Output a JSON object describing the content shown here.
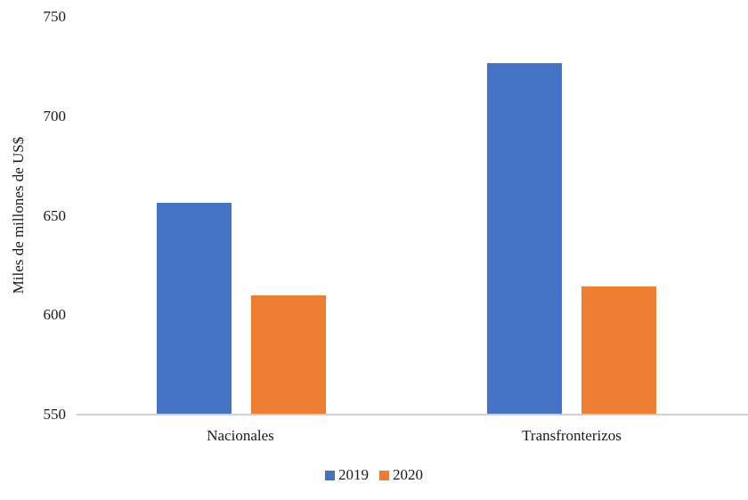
{
  "chart_data": {
    "type": "bar",
    "title": "",
    "xlabel": "",
    "ylabel": "Miles de millones de US$",
    "ylim": [
      550,
      750
    ],
    "yticks": [
      550,
      600,
      650,
      700,
      750
    ],
    "grid": false,
    "legend_position": "bottom",
    "categories": [
      "Nacionales",
      "Transfronterizos"
    ],
    "series": [
      {
        "name": "2019",
        "color": "#4472C4",
        "values": [
          656.5,
          726.7
        ]
      },
      {
        "name": "2020",
        "color": "#ED7D31",
        "values": [
          610.0,
          614.4
        ]
      }
    ]
  },
  "labels": {
    "ylabel": "Miles de millones de US$",
    "ticks": [
      "750",
      "700",
      "650",
      "600",
      "550"
    ],
    "categories": [
      "Nacionales",
      "Transfronterizos"
    ],
    "legend": [
      "2019",
      "2020"
    ]
  },
  "colors": {
    "s2019": "#4472C4",
    "s2020": "#ED7D31",
    "axis": "#D0D0D0"
  }
}
